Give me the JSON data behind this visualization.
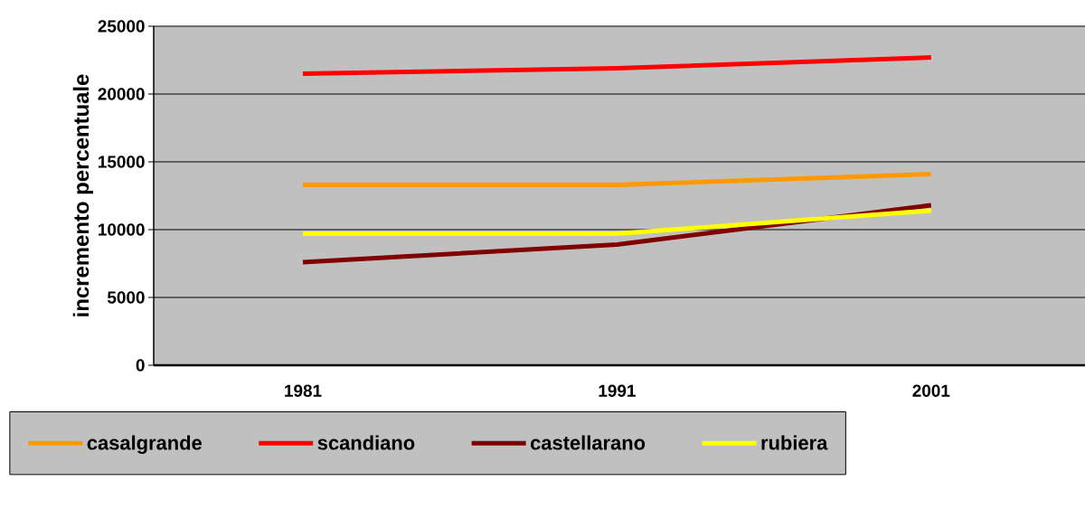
{
  "chart_data": {
    "type": "line",
    "ylabel": "incremento percentuale",
    "categories": [
      "1981",
      "1991",
      "2001"
    ],
    "series": [
      {
        "name": "casalgrande",
        "color": "#ff9900",
        "values": [
          13300,
          13300,
          14100
        ]
      },
      {
        "name": "scandiano",
        "color": "#ff0000",
        "values": [
          21500,
          21900,
          22700
        ]
      },
      {
        "name": "castellarano",
        "color": "#800000",
        "values": [
          7600,
          8900,
          11800
        ]
      },
      {
        "name": "rubiera",
        "color": "#ffff00",
        "values": [
          9700,
          9700,
          11400
        ]
      }
    ],
    "ylim": [
      0,
      25000
    ],
    "yticks": [
      0,
      5000,
      10000,
      15000,
      20000,
      25000
    ],
    "grid": "y",
    "legend": "bottom"
  }
}
